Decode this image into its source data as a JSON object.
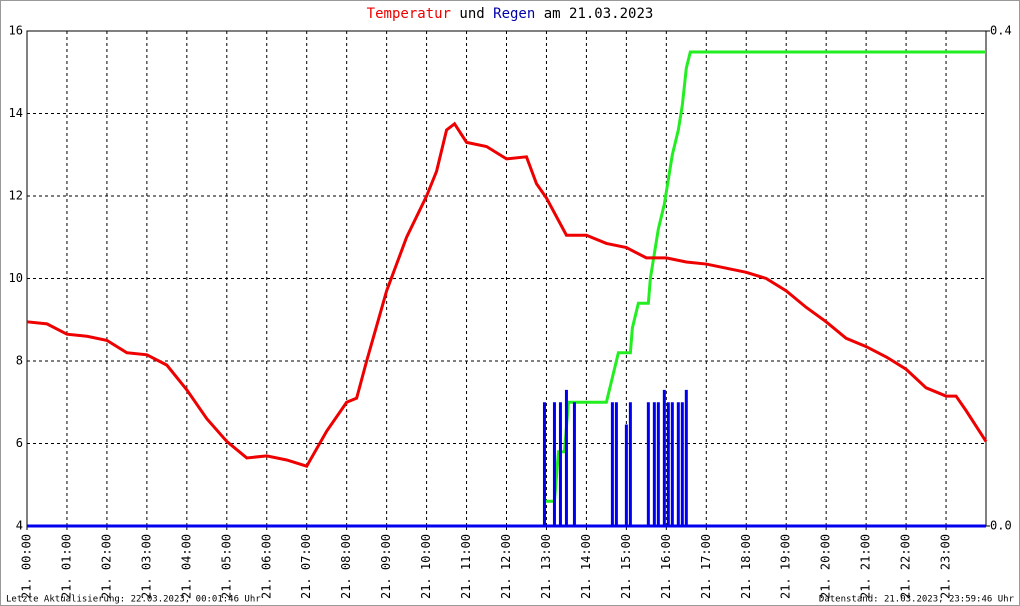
{
  "chart_data": {
    "type": "line",
    "title_connector": "und",
    "title_date": "am 21.03.2023",
    "xlim": [
      0,
      24
    ],
    "xticks": [
      {
        "value": 0,
        "label": "21. 00:00"
      },
      {
        "value": 1,
        "label": "21. 01:00"
      },
      {
        "value": 2,
        "label": "21. 02:00"
      },
      {
        "value": 3,
        "label": "21. 03:00"
      },
      {
        "value": 4,
        "label": "21. 04:00"
      },
      {
        "value": 5,
        "label": "21. 05:00"
      },
      {
        "value": 6,
        "label": "21. 06:00"
      },
      {
        "value": 7,
        "label": "21. 07:00"
      },
      {
        "value": 8,
        "label": "21. 08:00"
      },
      {
        "value": 9,
        "label": "21. 09:00"
      },
      {
        "value": 10,
        "label": "21. 10:00"
      },
      {
        "value": 11,
        "label": "21. 11:00"
      },
      {
        "value": 12,
        "label": "21. 12:00"
      },
      {
        "value": 13,
        "label": "21. 13:00"
      },
      {
        "value": 14,
        "label": "21. 14:00"
      },
      {
        "value": 15,
        "label": "21. 15:00"
      },
      {
        "value": 16,
        "label": "21. 16:00"
      },
      {
        "value": 17,
        "label": "21. 17:00"
      },
      {
        "value": 18,
        "label": "21. 18:00"
      },
      {
        "value": 19,
        "label": "21. 19:00"
      },
      {
        "value": 20,
        "label": "21. 20:00"
      },
      {
        "value": 21,
        "label": "21. 21:00"
      },
      {
        "value": 22,
        "label": "21. 22:00"
      },
      {
        "value": 23,
        "label": "21. 23:00"
      }
    ],
    "ylim": [
      4,
      16
    ],
    "yticks": [
      4,
      6,
      8,
      10,
      12,
      14,
      16
    ],
    "y2lim": [
      0,
      0.4
    ],
    "y2ticks": [
      {
        "value": 0,
        "label": "0.0"
      },
      0.4
    ],
    "grid": true,
    "series": [
      {
        "name": "Temperatur",
        "color": "#ee0000",
        "axis": "y",
        "x": [
          0,
          0.5,
          1,
          1.5,
          2,
          2.5,
          3,
          3.5,
          4,
          4.5,
          5,
          5.5,
          6,
          6.5,
          7,
          7.5,
          8,
          8.25,
          8.5,
          9,
          9.5,
          10,
          10.25,
          10.5,
          10.7,
          11,
          11.5,
          12,
          12.5,
          12.75,
          13,
          13.5,
          14,
          14.5,
          15,
          15.5,
          16,
          16.5,
          17,
          17.5,
          18,
          18.5,
          19,
          19.5,
          20,
          20.5,
          21,
          21.5,
          22,
          22.5,
          23,
          23.25,
          23.5,
          24
        ],
        "values": [
          8.95,
          8.9,
          8.65,
          8.6,
          8.5,
          8.2,
          8.15,
          7.9,
          7.3,
          6.6,
          6.05,
          5.65,
          5.7,
          5.6,
          5.45,
          6.3,
          7.0,
          7.1,
          8.0,
          9.7,
          11.0,
          12.0,
          12.6,
          13.6,
          13.75,
          13.3,
          13.2,
          12.9,
          12.95,
          12.3,
          11.95,
          11.05,
          11.05,
          10.85,
          10.75,
          10.5,
          10.5,
          10.4,
          10.35,
          10.25,
          10.15,
          10.0,
          9.7,
          9.3,
          8.95,
          8.55,
          8.35,
          8.1,
          7.8,
          7.35,
          7.15,
          7.15,
          6.8,
          6.05
        ]
      },
      {
        "color": "#22ee22",
        "axis": "y2",
        "x": [
          0,
          12.95,
          12.95,
          13.2,
          13.3,
          13.45,
          13.55,
          14.5,
          14.65,
          14.8,
          15.1,
          15.15,
          15.3,
          15.55,
          15.6,
          15.7,
          15.8,
          15.95,
          16.05,
          16.15,
          16.3,
          16.4,
          16.5,
          16.6,
          24
        ],
        "values": [
          0,
          0,
          0.02,
          0.02,
          0.06,
          0.06,
          0.1,
          0.1,
          0.12,
          0.14,
          0.14,
          0.16,
          0.18,
          0.18,
          0.2,
          0.22,
          0.24,
          0.26,
          0.28,
          0.3,
          0.32,
          0.34,
          0.37,
          0.383,
          0.383
        ]
      },
      {
        "name": "Regen",
        "color": "#0000ee",
        "axis": "y2",
        "type": "bar",
        "x": [
          12.95,
          13.2,
          13.35,
          13.5,
          13.7,
          14.65,
          14.75,
          15.0,
          15.1,
          15.55,
          15.7,
          15.8,
          15.95,
          16.05,
          16.15,
          16.3,
          16.4,
          16.5
        ],
        "values": [
          0.1,
          0.1,
          0.1,
          0.11,
          0.1,
          0.1,
          0.1,
          0.082,
          0.1,
          0.1,
          0.1,
          0.1,
          0.11,
          0.1,
          0.1,
          0.1,
          0.1,
          0.11
        ]
      }
    ]
  },
  "footer": {
    "left": "Letzte Aktualisierung: 22.03.2023, 00:01:46 Uhr",
    "right": "Datenstand: 21.03.2023, 23:59:46 Uhr"
  }
}
